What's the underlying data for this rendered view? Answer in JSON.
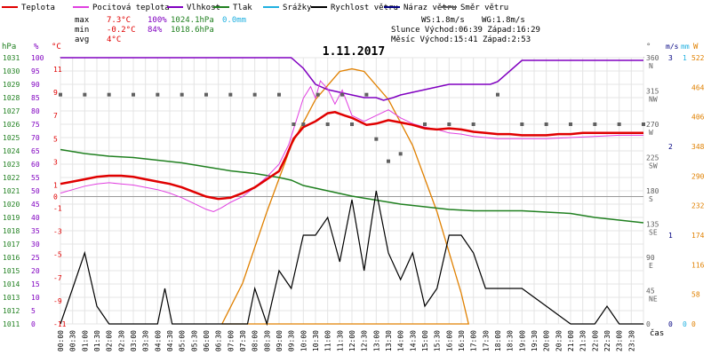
{
  "chart_data": {
    "type": "line",
    "title": "1.11.2017",
    "legend": [
      {
        "label": "Teplota",
        "color": "#e00000"
      },
      {
        "label": "Pocitová teplota",
        "color": "#e040e0"
      },
      {
        "label": "Vlhkost",
        "color": "#8000c0"
      },
      {
        "label": "Tlak",
        "color": "#208020"
      },
      {
        "label": "Srážky",
        "color": "#20b0e0"
      },
      {
        "label": "Rychlost větru",
        "color": "#000000"
      },
      {
        "label": "Náraz větru",
        "color": "#000080"
      },
      {
        "label": "Směr větru",
        "color": "#606060"
      }
    ],
    "stats": {
      "max_label": "max",
      "min_label": "min",
      "avg_label": "avg",
      "max_temp": "7.3°C",
      "max_hum": "100%",
      "max_press": "1024.1hPa",
      "max_rain": "0.0mm",
      "min_temp": "-0.2°C",
      "min_hum": "84%",
      "min_press": "1018.6hPa",
      "avg_temp": "4°C"
    },
    "info": {
      "ws": "WS:1.8m/s",
      "wg": "WG:1.8m/s",
      "sun": "Slunce Východ:06:39  Západ:16:29",
      "moon": "Měsíc  Východ:15:41  Západ:2:53"
    },
    "axis_headers": {
      "hpa": "hPa",
      "pct": "%",
      "degc": "°C",
      "deg": "°",
      "ms": "m/s",
      "mm": "mm",
      "w": "W",
      "cas": "čas"
    },
    "ticks": {
      "hpa": [
        "1031",
        "1030",
        "1029",
        "1028",
        "1027",
        "1026",
        "1025",
        "1024",
        "1023",
        "1022",
        "1021",
        "1020",
        "1019",
        "1018",
        "1017",
        "1016",
        "1015",
        "1014",
        "1013",
        "1012",
        "1011"
      ],
      "pct": [
        "100",
        "95",
        "90",
        "85",
        "80",
        "75",
        "70",
        "65",
        "60",
        "55",
        "50",
        "45",
        "40",
        "35",
        "30",
        "25",
        "20",
        "15",
        "10",
        "5",
        "0"
      ],
      "temp": [
        "11",
        "9",
        "7",
        "5",
        "3",
        "1",
        "0",
        "-1",
        "-3",
        "-5",
        "-7",
        "-9",
        "-11"
      ],
      "dir": [
        "360\nN",
        "315\nNW",
        "270\nW",
        "225\nSW",
        "180\nS",
        "135\nSE",
        "90\nE",
        "45\nNE",
        "0"
      ],
      "ms": [
        "3",
        "2",
        "1",
        "0"
      ],
      "mm": [
        "1",
        "0"
      ],
      "w": [
        "522",
        "464",
        "406",
        "348",
        "290",
        "232",
        "174",
        "116",
        "58",
        "0"
      ],
      "time": [
        "00:00",
        "00:30",
        "01:00",
        "01:30",
        "02:00",
        "02:30",
        "03:00",
        "03:30",
        "04:00",
        "04:30",
        "05:00",
        "05:30",
        "06:00",
        "06:30",
        "07:00",
        "07:30",
        "08:00",
        "08:30",
        "09:00",
        "09:30",
        "10:00",
        "10:30",
        "11:00",
        "11:30",
        "12:00",
        "12:30",
        "13:00",
        "13:30",
        "14:00",
        "14:30",
        "15:00",
        "15:30",
        "16:00",
        "16:30",
        "17:00",
        "17:30",
        "18:00",
        "18:30",
        "19:00",
        "19:30",
        "20:00",
        "20:30",
        "21:00",
        "21:30",
        "22:00",
        "22:30",
        "23:00",
        "23:30"
      ]
    },
    "xlim": [
      0,
      24
    ],
    "ylim_temp": [
      -11,
      12
    ],
    "ylim_press": [
      1011,
      1031
    ],
    "ylim_hum": [
      0,
      100
    ],
    "ylim_dir": [
      0,
      360
    ],
    "ylim_wind": [
      0,
      3
    ],
    "ylim_solar": [
      0,
      522
    ],
    "series": {
      "temperature": [
        [
          0,
          1.1
        ],
        [
          0.5,
          1.3
        ],
        [
          1,
          1.5
        ],
        [
          1.5,
          1.7
        ],
        [
          2,
          1.8
        ],
        [
          2.5,
          1.8
        ],
        [
          3,
          1.7
        ],
        [
          3.5,
          1.5
        ],
        [
          4,
          1.3
        ],
        [
          4.5,
          1.1
        ],
        [
          5,
          0.8
        ],
        [
          5.5,
          0.4
        ],
        [
          6,
          0
        ],
        [
          6.5,
          -0.2
        ],
        [
          7,
          -0.1
        ],
        [
          7.5,
          0.3
        ],
        [
          8,
          0.8
        ],
        [
          8.5,
          1.5
        ],
        [
          9,
          2.2
        ],
        [
          9.3,
          3.5
        ],
        [
          9.6,
          5
        ],
        [
          10,
          6
        ],
        [
          10.5,
          6.5
        ],
        [
          11,
          7.2
        ],
        [
          11.3,
          7.3
        ],
        [
          11.7,
          7
        ],
        [
          12,
          6.8
        ],
        [
          12.3,
          6.5
        ],
        [
          12.6,
          6.2
        ],
        [
          13,
          6.3
        ],
        [
          13.5,
          6.6
        ],
        [
          14,
          6.4
        ],
        [
          14.5,
          6.2
        ],
        [
          15,
          5.9
        ],
        [
          15.5,
          5.8
        ],
        [
          16,
          5.9
        ],
        [
          16.5,
          5.8
        ],
        [
          17,
          5.6
        ],
        [
          17.5,
          5.5
        ],
        [
          18,
          5.4
        ],
        [
          18.5,
          5.4
        ],
        [
          19,
          5.3
        ],
        [
          19.5,
          5.3
        ],
        [
          20,
          5.3
        ],
        [
          20.5,
          5.4
        ],
        [
          21,
          5.4
        ],
        [
          21.5,
          5.5
        ],
        [
          22,
          5.5
        ],
        [
          22.5,
          5.5
        ],
        [
          23,
          5.5
        ],
        [
          23.5,
          5.5
        ],
        [
          24,
          5.5
        ]
      ],
      "feels_like": [
        [
          0,
          0.3
        ],
        [
          0.5,
          0.6
        ],
        [
          1,
          0.9
        ],
        [
          1.5,
          1.1
        ],
        [
          2,
          1.2
        ],
        [
          2.5,
          1.1
        ],
        [
          3,
          1
        ],
        [
          3.5,
          0.8
        ],
        [
          4,
          0.6
        ],
        [
          4.5,
          0.3
        ],
        [
          5,
          -0.1
        ],
        [
          5.5,
          -0.6
        ],
        [
          6,
          -1.1
        ],
        [
          6.3,
          -1.3
        ],
        [
          6.6,
          -1
        ],
        [
          7,
          -0.5
        ],
        [
          7.5,
          0
        ],
        [
          8,
          0.8
        ],
        [
          8.5,
          1.7
        ],
        [
          9,
          2.8
        ],
        [
          9.4,
          4.5
        ],
        [
          9.7,
          6.5
        ],
        [
          10,
          8.5
        ],
        [
          10.3,
          9.5
        ],
        [
          10.5,
          8.5
        ],
        [
          10.7,
          10
        ],
        [
          11,
          9.3
        ],
        [
          11.3,
          8
        ],
        [
          11.6,
          9.2
        ],
        [
          12,
          7
        ],
        [
          12.5,
          6.5
        ],
        [
          13,
          7
        ],
        [
          13.5,
          7.5
        ],
        [
          14,
          6.8
        ],
        [
          14.5,
          6.3
        ],
        [
          15,
          6
        ],
        [
          15.5,
          5.8
        ],
        [
          16,
          5.5
        ],
        [
          16.5,
          5.4
        ],
        [
          17,
          5.2
        ],
        [
          17.5,
          5.1
        ],
        [
          18,
          5
        ],
        [
          19,
          5
        ],
        [
          20,
          5
        ],
        [
          21,
          5.1
        ],
        [
          22,
          5.2
        ],
        [
          23,
          5.3
        ],
        [
          24,
          5.3
        ]
      ],
      "humidity": [
        [
          0,
          100
        ],
        [
          8,
          100
        ],
        [
          9.5,
          100
        ],
        [
          10,
          96
        ],
        [
          10.5,
          90
        ],
        [
          11,
          88
        ],
        [
          11.5,
          87
        ],
        [
          12,
          86
        ],
        [
          12.5,
          85
        ],
        [
          13,
          85
        ],
        [
          13.3,
          84
        ],
        [
          13.7,
          85
        ],
        [
          14,
          86
        ],
        [
          14.5,
          87
        ],
        [
          15,
          88
        ],
        [
          15.5,
          89
        ],
        [
          16,
          90
        ],
        [
          17,
          90
        ],
        [
          17.7,
          90
        ],
        [
          18,
          91
        ],
        [
          19,
          99
        ],
        [
          20,
          99
        ],
        [
          21,
          99
        ],
        [
          22,
          99
        ],
        [
          23,
          99
        ],
        [
          24,
          99
        ]
      ],
      "pressure": [
        [
          0,
          1024.1
        ],
        [
          1,
          1023.8
        ],
        [
          2,
          1023.6
        ],
        [
          3,
          1023.5
        ],
        [
          4,
          1023.3
        ],
        [
          5,
          1023.1
        ],
        [
          6,
          1022.8
        ],
        [
          7,
          1022.5
        ],
        [
          8,
          1022.3
        ],
        [
          9,
          1022
        ],
        [
          9.5,
          1021.8
        ],
        [
          10,
          1021.4
        ],
        [
          11,
          1021
        ],
        [
          12,
          1020.6
        ],
        [
          13,
          1020.3
        ],
        [
          14,
          1020
        ],
        [
          15,
          1019.8
        ],
        [
          16,
          1019.6
        ],
        [
          17,
          1019.5
        ],
        [
          18,
          1019.5
        ],
        [
          19,
          1019.5
        ],
        [
          20,
          1019.4
        ],
        [
          21,
          1019.3
        ],
        [
          22,
          1019
        ],
        [
          23,
          1018.8
        ],
        [
          24,
          1018.6
        ]
      ],
      "wind_speed": [
        [
          0,
          0
        ],
        [
          0.5,
          0.4
        ],
        [
          1,
          0.8
        ],
        [
          1.5,
          0.2
        ],
        [
          2,
          0
        ],
        [
          3,
          0
        ],
        [
          4,
          0
        ],
        [
          4.3,
          0.4
        ],
        [
          4.6,
          0
        ],
        [
          6,
          0
        ],
        [
          7.7,
          0
        ],
        [
          8,
          0.4
        ],
        [
          8.5,
          0
        ],
        [
          9,
          0.6
        ],
        [
          9.5,
          0.4
        ],
        [
          10,
          1
        ],
        [
          10.5,
          1
        ],
        [
          11,
          1.2
        ],
        [
          11.5,
          0.7
        ],
        [
          12,
          1.4
        ],
        [
          12.5,
          0.6
        ],
        [
          13,
          1.5
        ],
        [
          13.5,
          0.8
        ],
        [
          14,
          0.5
        ],
        [
          14.5,
          0.8
        ],
        [
          15,
          0.2
        ],
        [
          15.5,
          0.4
        ],
        [
          16,
          1
        ],
        [
          16.5,
          1
        ],
        [
          17,
          0.8
        ],
        [
          17.5,
          0.4
        ],
        [
          18,
          0.4
        ],
        [
          19,
          0.4
        ],
        [
          20,
          0.2
        ],
        [
          21,
          0
        ],
        [
          22,
          0
        ],
        [
          22.5,
          0.2
        ],
        [
          23,
          0
        ],
        [
          24,
          0
        ]
      ],
      "solar": [
        [
          6.65,
          0
        ],
        [
          7.5,
          80
        ],
        [
          8.5,
          220
        ],
        [
          9.5,
          350
        ],
        [
          10.5,
          440
        ],
        [
          11.5,
          495
        ],
        [
          12,
          500
        ],
        [
          12.5,
          495
        ],
        [
          13.5,
          440
        ],
        [
          14.5,
          350
        ],
        [
          15.5,
          220
        ],
        [
          16.5,
          60
        ],
        [
          16.8,
          0
        ]
      ],
      "wind_dir": [
        [
          0,
          310
        ],
        [
          1,
          310
        ],
        [
          2,
          310
        ],
        [
          3,
          310
        ],
        [
          4,
          310
        ],
        [
          5,
          310
        ],
        [
          6,
          310
        ],
        [
          7,
          310
        ],
        [
          8,
          310
        ],
        [
          9,
          310
        ],
        [
          9.6,
          270
        ],
        [
          10,
          270
        ],
        [
          10.6,
          310
        ],
        [
          11,
          270
        ],
        [
          11.6,
          310
        ],
        [
          12,
          270
        ],
        [
          12.6,
          310
        ],
        [
          13,
          250
        ],
        [
          13.5,
          220
        ],
        [
          14,
          230
        ],
        [
          15,
          270
        ],
        [
          16,
          270
        ],
        [
          17,
          270
        ],
        [
          18,
          310
        ],
        [
          19,
          270
        ],
        [
          20,
          270
        ],
        [
          21,
          270
        ],
        [
          22,
          270
        ],
        [
          23,
          270
        ],
        [
          24,
          270
        ]
      ]
    }
  }
}
